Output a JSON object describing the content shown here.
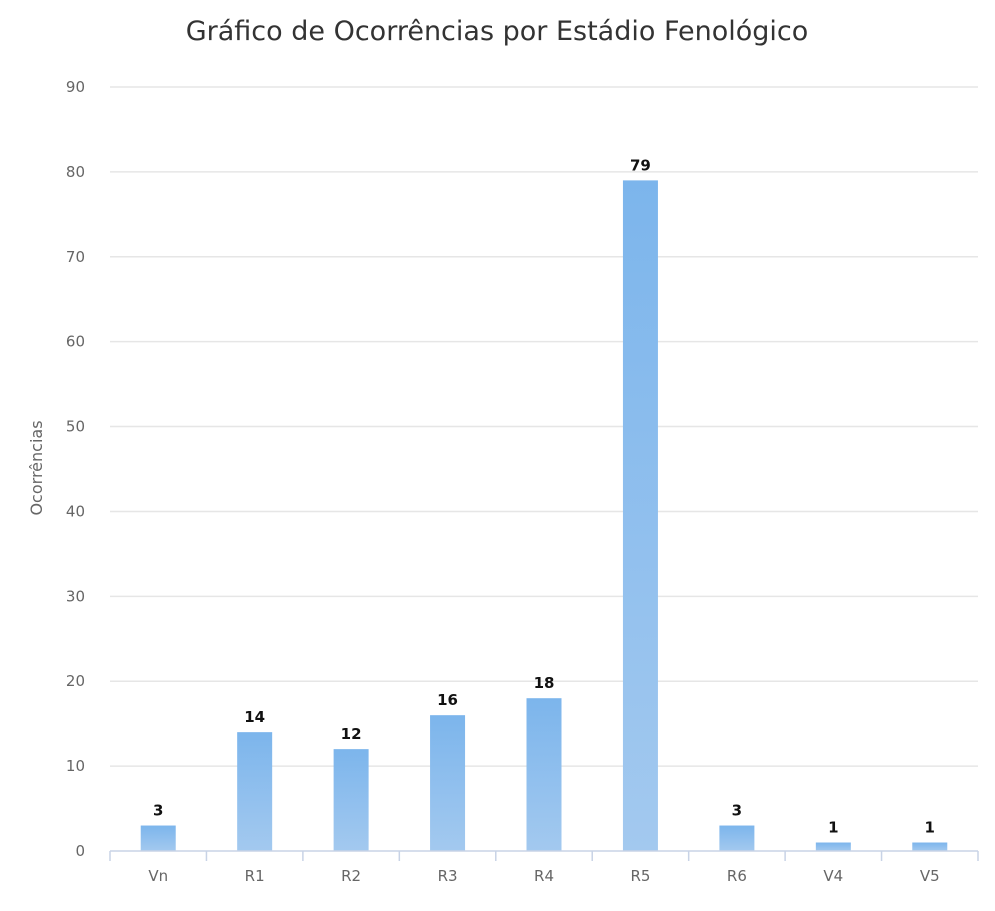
{
  "chart_data": {
    "type": "bar",
    "title": "Gráfico de Ocorrências por Estádio Fenológico",
    "xlabel": "",
    "ylabel": "Ocorrências",
    "categories": [
      "Vn",
      "R1",
      "R2",
      "R3",
      "R4",
      "R5",
      "R6",
      "V4",
      "V5"
    ],
    "values": [
      3,
      14,
      12,
      16,
      18,
      79,
      3,
      1,
      1
    ],
    "ylim": [
      0,
      90
    ],
    "yticks": [
      0,
      10,
      20,
      30,
      40,
      50,
      60,
      70,
      80,
      90
    ],
    "grid": true,
    "legend": "none",
    "data_labels": true,
    "colors": {
      "bar_top": "#7cb5ec",
      "bar_bottom": "#a3c9ef"
    }
  }
}
